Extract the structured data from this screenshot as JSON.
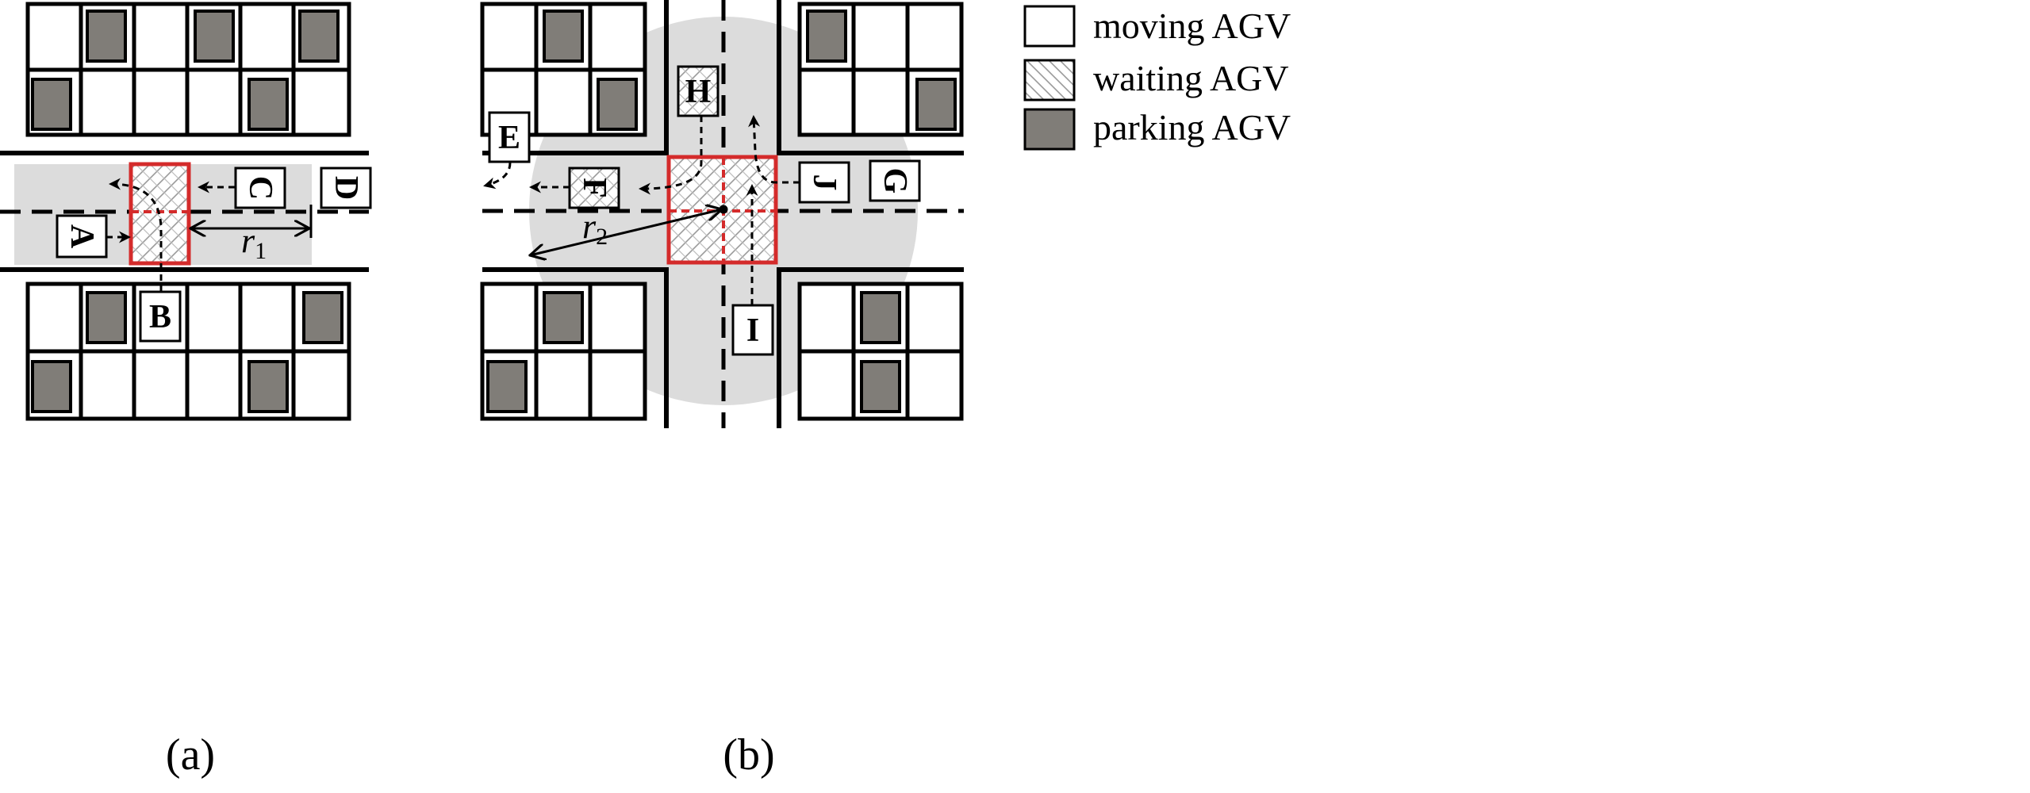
{
  "figure": {
    "panel_a": {
      "caption": "(a)",
      "radius_symbol": "r",
      "radius_subscript": "1",
      "agvs": [
        {
          "id": "A",
          "state": "moving",
          "rotated": true
        },
        {
          "id": "B",
          "state": "moving",
          "rotated": false
        },
        {
          "id": "C",
          "state": "moving",
          "rotated": true
        },
        {
          "id": "D",
          "state": "moving",
          "rotated": true
        }
      ]
    },
    "panel_b": {
      "caption": "(b)",
      "radius_symbol": "r",
      "radius_subscript": "2",
      "agvs": [
        {
          "id": "E",
          "state": "moving",
          "rotated": false
        },
        {
          "id": "F",
          "state": "waiting",
          "rotated": true
        },
        {
          "id": "G",
          "state": "moving",
          "rotated": true
        },
        {
          "id": "H",
          "state": "waiting",
          "rotated": false
        },
        {
          "id": "I",
          "state": "moving",
          "rotated": false
        },
        {
          "id": "J",
          "state": "moving",
          "rotated": true
        }
      ]
    },
    "legend": [
      {
        "key": "moving",
        "label": "moving AGV"
      },
      {
        "key": "waiting",
        "label": "waiting AGV"
      },
      {
        "key": "parking",
        "label": "parking AGV"
      }
    ],
    "colors": {
      "line": "#000000",
      "parking_fill": "#807d78",
      "zone_fill": "#dcdcdc",
      "conflict_border": "#d42b2b",
      "background": "#ffffff"
    }
  }
}
